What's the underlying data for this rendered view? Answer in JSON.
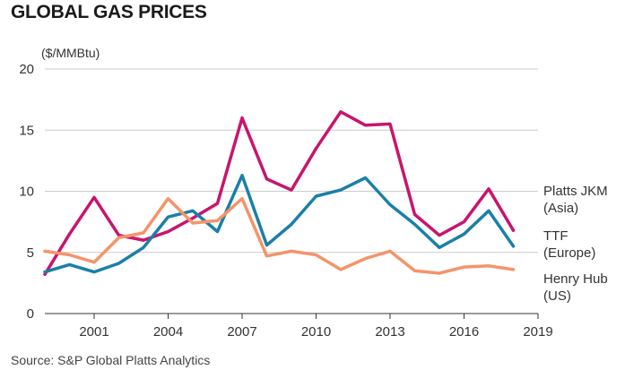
{
  "chart_data": {
    "type": "line",
    "title": "GLOBAL GAS PRICES",
    "ylabel": "($/MMBtu)",
    "xlabel": "",
    "ylim": [
      0,
      20
    ],
    "y_ticks": [
      "0",
      "5",
      "10",
      "15",
      "20"
    ],
    "x_ticks": [
      "2001",
      "2004",
      "2007",
      "2010",
      "2013",
      "2016",
      "2019"
    ],
    "x": [
      1999,
      2000,
      2001,
      2002,
      2003,
      2004,
      2005,
      2006,
      2007,
      2008,
      2009,
      2010,
      2011,
      2012,
      2013,
      2014,
      2015,
      2016,
      2017,
      2018,
      2019
    ],
    "grid": true,
    "legend": "right-end labels",
    "series": [
      {
        "name": "Platts JKM (Asia)",
        "label_lines": [
          "Platts JKM",
          "(Asia)"
        ],
        "color": "#c8146e",
        "values": [
          3.2,
          6.5,
          9.5,
          6.4,
          6.0,
          6.7,
          7.8,
          9.0,
          16.0,
          11.0,
          10.1,
          13.5,
          16.5,
          15.4,
          15.5,
          8.1,
          6.4,
          7.5,
          10.2,
          6.8,
          null
        ]
      },
      {
        "name": "TTF (Europe)",
        "label_lines": [
          "TTF",
          "(Europe)"
        ],
        "color": "#1a7fa8",
        "values": [
          3.4,
          4.0,
          3.4,
          4.1,
          5.4,
          7.9,
          8.4,
          6.7,
          11.3,
          5.6,
          7.3,
          9.6,
          10.1,
          11.1,
          8.9,
          7.3,
          5.4,
          6.5,
          8.4,
          5.5,
          null
        ]
      },
      {
        "name": "Henry Hub (US)",
        "label_lines": [
          "Henry Hub",
          "(US)"
        ],
        "color": "#f4946a",
        "values": [
          5.1,
          4.8,
          4.2,
          6.2,
          6.6,
          9.4,
          7.4,
          7.6,
          9.4,
          4.7,
          5.1,
          4.8,
          3.6,
          4.5,
          5.1,
          3.5,
          3.3,
          3.8,
          3.9,
          3.6,
          null
        ]
      }
    ]
  },
  "source": "Source: S&P Global Platts Analytics"
}
